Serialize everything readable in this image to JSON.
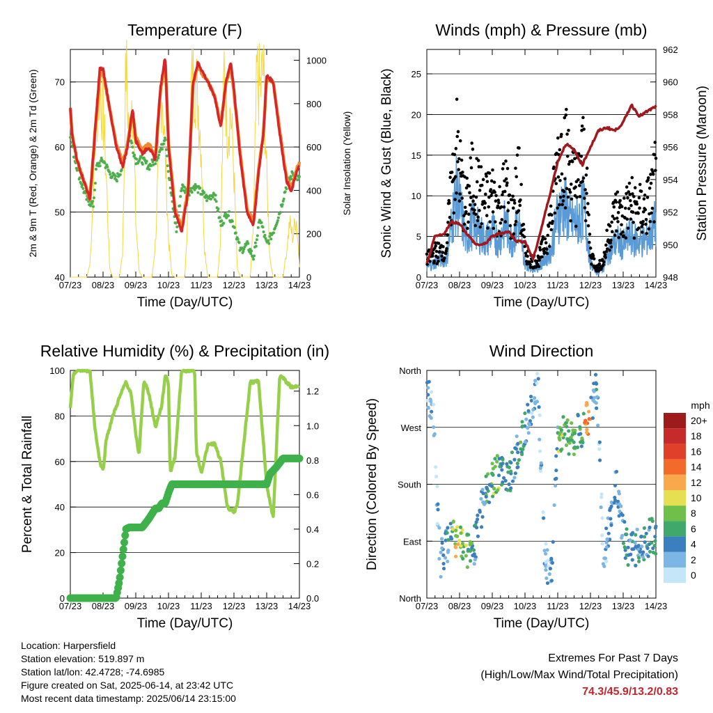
{
  "colors": {
    "t2m": "#d62728",
    "t9m": "#f08a2c",
    "td": "#4daf4a",
    "solar": "#f5d63d",
    "wind": "#5b9bd5",
    "gust": "#000000",
    "pressure": "#a0191f",
    "rh": "#96cf4a",
    "precip": "#3fb14a",
    "extremes": "#c1272d"
  },
  "chart_data": [
    {
      "type": "line",
      "title": "Temperature (F)",
      "xlabel": "Time (Day/UTC)",
      "ylabel": "2m & 9m T (Red, Orange) & 2m Td (Green)",
      "y2label": "Solar Insolation (Yellow)",
      "xticks": [
        "07/23",
        "08/23",
        "09/23",
        "10/23",
        "11/23",
        "12/23",
        "13/23",
        "14/23"
      ],
      "ylim": [
        40,
        75
      ],
      "yticks": [
        40,
        50,
        60,
        70
      ],
      "y2lim": [
        0,
        1050
      ],
      "y2ticks": [
        0,
        200,
        400,
        600,
        800,
        1000
      ],
      "grid": true,
      "series": [
        {
          "role": "t2m",
          "x": [
            0,
            0.05,
            0.2,
            0.4,
            0.6,
            0.75,
            0.9,
            1.0,
            1.2,
            1.4,
            1.6,
            1.75,
            1.9,
            2.0,
            2.2,
            2.4,
            2.6,
            2.75,
            2.9,
            3.0,
            3.2,
            3.4,
            3.6,
            3.75,
            3.9,
            4.0,
            4.2,
            4.4,
            4.6,
            4.75,
            4.9,
            5.0,
            5.2,
            5.4,
            5.6,
            5.75,
            5.9,
            6.0,
            6.2,
            6.4,
            6.6,
            6.75,
            6.9,
            7.0
          ],
          "y": [
            66,
            62,
            58,
            55,
            52,
            62,
            72,
            72,
            66,
            60,
            57,
            60,
            66,
            61,
            59,
            60,
            58,
            69,
            74,
            60,
            50,
            47,
            53,
            70,
            73,
            72,
            70,
            68,
            63,
            70,
            73,
            69,
            58,
            50,
            48,
            56,
            62,
            71,
            70,
            62,
            55,
            53,
            56,
            57
          ]
        },
        {
          "role": "t9m",
          "x": [
            0,
            0.05,
            0.2,
            0.4,
            0.6,
            0.75,
            0.9,
            1.0,
            1.2,
            1.4,
            1.6,
            1.75,
            1.9,
            2.0,
            2.2,
            2.4,
            2.6,
            2.75,
            2.9,
            3.0,
            3.2,
            3.4,
            3.6,
            3.75,
            3.9,
            4.0,
            4.2,
            4.4,
            4.6,
            4.75,
            4.9,
            5.0,
            5.2,
            5.4,
            5.6,
            5.75,
            5.9,
            6.0,
            6.2,
            6.4,
            6.6,
            6.75,
            6.9,
            7.0
          ],
          "y": [
            66,
            62,
            58,
            55,
            52,
            62,
            71,
            71.5,
            66,
            60.5,
            57.5,
            60.5,
            65.5,
            61.5,
            59.5,
            60.5,
            58.5,
            68.5,
            73.5,
            60.5,
            50.5,
            47.5,
            53.5,
            69.5,
            72.5,
            71.5,
            70,
            68,
            63.5,
            69.5,
            72.5,
            68.5,
            58.5,
            50.5,
            48.5,
            56.5,
            62,
            70.5,
            70,
            62.5,
            55.5,
            53.5,
            56.5,
            57.5
          ]
        },
        {
          "role": "td",
          "x": [
            0,
            0.1,
            0.3,
            0.5,
            0.7,
            0.8,
            1.0,
            1.2,
            1.4,
            1.6,
            1.8,
            2.0,
            2.2,
            2.4,
            2.6,
            2.8,
            2.9,
            3.0,
            3.1,
            3.25,
            3.4,
            3.6,
            3.8,
            4.0,
            4.2,
            4.4,
            4.6,
            4.8,
            5.0,
            5.2,
            5.4,
            5.6,
            5.8,
            6.0,
            6.2,
            6.4,
            6.6,
            6.8,
            7.0
          ],
          "y": [
            62,
            59,
            55,
            52,
            51,
            57,
            58,
            56,
            55,
            57,
            62,
            58,
            58,
            57,
            58,
            60,
            62,
            56,
            52,
            47,
            54,
            53,
            54,
            53,
            52,
            53,
            48,
            50,
            48,
            44,
            45,
            43,
            49,
            45,
            47,
            50,
            54,
            56,
            55
          ]
        },
        {
          "role": "solar",
          "axis": "y2",
          "x": [
            0,
            0.5,
            0.6,
            0.7,
            0.8,
            0.9,
            1.0,
            1.1,
            1.2,
            1.3,
            1.4,
            1.5,
            1.6,
            1.7,
            1.8,
            1.9,
            2.0,
            2.1,
            2.2,
            2.3,
            2.4,
            2.5,
            2.6,
            2.7,
            2.8,
            2.9,
            3.0,
            3.1,
            3.2,
            3.3,
            3.4,
            3.5,
            3.6,
            3.7,
            3.8,
            3.9,
            4.0,
            4.1,
            4.2,
            4.3,
            4.4,
            4.5,
            4.6,
            4.7,
            4.8,
            4.9,
            5.0,
            5.1,
            5.2,
            5.3,
            5.4,
            5.5,
            5.6,
            5.7,
            5.8,
            5.9,
            6.0,
            6.1,
            6.2,
            6.3,
            6.4,
            6.5,
            6.6,
            6.7,
            6.8,
            6.9,
            7.0
          ],
          "y": [
            0,
            0,
            60,
            380,
            760,
            880,
            780,
            460,
            40,
            0,
            0,
            0,
            120,
            990,
            620,
            900,
            260,
            30,
            0,
            0,
            0,
            0,
            160,
            540,
            910,
            560,
            180,
            10,
            0,
            0,
            0,
            0,
            320,
            880,
            930,
            820,
            610,
            140,
            0,
            0,
            0,
            0,
            210,
            980,
            690,
            760,
            480,
            40,
            0,
            0,
            0,
            0,
            260,
            930,
            850,
            960,
            470,
            90,
            0,
            0,
            0,
            0,
            110,
            250,
            180,
            290,
            60
          ]
        }
      ]
    },
    {
      "type": "scatter",
      "title": "Winds (mph) & Pressure (mb)",
      "xlabel": "Time (Day/UTC)",
      "ylabel": "Sonic Wind & Gust (Blue, Black)",
      "y2label": "Station Pressure (Maroon)",
      "xticks": [
        "07/23",
        "08/23",
        "09/23",
        "10/23",
        "11/23",
        "12/23",
        "13/23",
        "14/23"
      ],
      "ylim": [
        0,
        28
      ],
      "yticks": [
        0,
        5,
        10,
        15,
        20,
        25
      ],
      "y2lim": [
        948,
        962
      ],
      "y2ticks": [
        948,
        950,
        952,
        954,
        956,
        958,
        960,
        962
      ],
      "grid": true,
      "series": [
        {
          "role": "gust",
          "x": [
            0,
            0.2,
            0.4,
            0.6,
            0.8,
            0.9,
            1.0,
            1.1,
            1.2,
            1.4,
            1.6,
            1.8,
            2.0,
            2.2,
            2.4,
            2.6,
            2.8,
            3.0,
            3.2,
            3.4,
            3.6,
            3.8,
            4.0,
            4.2,
            4.4,
            4.6,
            4.8,
            5.0,
            5.2,
            5.4,
            5.6,
            5.8,
            6.0,
            6.2,
            6.4,
            6.6,
            6.8,
            7.0
          ],
          "y": [
            2,
            3,
            3,
            4,
            12,
            16,
            13,
            10,
            8,
            12,
            10,
            9,
            10,
            8,
            11,
            7,
            12,
            3,
            2,
            2,
            4,
            7,
            14,
            16,
            12,
            11,
            15,
            3,
            1,
            2,
            6,
            8,
            7,
            9,
            8,
            8,
            9,
            12
          ]
        },
        {
          "role": "wind",
          "x": [
            0,
            0.2,
            0.4,
            0.6,
            0.8,
            0.9,
            1.0,
            1.1,
            1.2,
            1.4,
            1.6,
            1.8,
            2.0,
            2.2,
            2.4,
            2.6,
            2.8,
            3.0,
            3.2,
            3.4,
            3.6,
            3.8,
            4.0,
            4.2,
            4.4,
            4.6,
            4.8,
            5.0,
            5.2,
            5.4,
            5.6,
            5.8,
            6.0,
            6.2,
            6.4,
            6.6,
            6.8,
            7.0
          ],
          "y": [
            1,
            1.5,
            2,
            2,
            7,
            9,
            8,
            6,
            4,
            6,
            5,
            4,
            5,
            4,
            6,
            4,
            6,
            1.5,
            1,
            1,
            2,
            3,
            7,
            8,
            6,
            6,
            8,
            1.5,
            0.5,
            1,
            3,
            4,
            3.5,
            4.5,
            4,
            4,
            4.5,
            6
          ]
        },
        {
          "role": "pressure",
          "axis": "y2",
          "x": [
            0,
            0.25,
            0.5,
            0.75,
            1.0,
            1.25,
            1.5,
            1.75,
            2.0,
            2.25,
            2.5,
            2.75,
            3.0,
            3.25,
            3.5,
            3.75,
            4.0,
            4.25,
            4.5,
            4.75,
            5.0,
            5.25,
            5.5,
            5.75,
            6.0,
            6.25,
            6.5,
            6.75,
            7.0
          ],
          "y": [
            948.8,
            950.5,
            950.6,
            951.4,
            951.3,
            950.6,
            950.0,
            950.0,
            950.5,
            950.7,
            950.8,
            950.2,
            950.2,
            949.1,
            951.0,
            953.0,
            955.1,
            956.2,
            955.8,
            954.9,
            956.0,
            957.0,
            957.2,
            957.0,
            957.5,
            958.6,
            957.9,
            958.2,
            958.5
          ]
        }
      ]
    },
    {
      "type": "line",
      "title": "Relative Humidity (%) & Precipitation (in)",
      "xlabel": "Time (Day/UTC)",
      "ylabel": "Percent & Total Rainfall",
      "xticks": [
        "07/23",
        "08/23",
        "09/23",
        "10/23",
        "11/23",
        "12/23",
        "13/23",
        "14/23"
      ],
      "ylim": [
        0,
        100
      ],
      "yticks": [
        0,
        20,
        40,
        60,
        80,
        100
      ],
      "y2lim": [
        0,
        1.32
      ],
      "y2ticks": [
        0.0,
        0.2,
        0.4,
        0.6,
        0.8,
        1.0,
        1.2
      ],
      "grid": true,
      "series": [
        {
          "role": "rh",
          "x": [
            0,
            0.1,
            0.3,
            0.6,
            0.75,
            0.9,
            1.0,
            1.1,
            1.3,
            1.5,
            1.7,
            1.85,
            2.0,
            2.1,
            2.25,
            2.4,
            2.6,
            2.8,
            2.9,
            3.0,
            3.05,
            3.2,
            3.4,
            3.6,
            3.8,
            3.85,
            4.0,
            4.2,
            4.4,
            4.6,
            4.8,
            5.0,
            5.1,
            5.3,
            5.5,
            5.75,
            6.0,
            6.2,
            6.4,
            6.6,
            6.8,
            7.0
          ],
          "y": [
            83,
            99,
            100,
            100,
            75,
            60,
            56,
            70,
            80,
            88,
            95,
            90,
            72,
            63,
            96,
            90,
            75,
            85,
            98,
            95,
            55,
            62,
            100,
            100,
            100,
            65,
            55,
            67,
            68,
            60,
            40,
            38,
            40,
            68,
            95,
            95,
            50,
            35,
            98,
            95,
            92,
            94
          ]
        },
        {
          "role": "precip",
          "axis": "y2",
          "x": [
            0,
            0.5,
            1.4,
            1.5,
            1.6,
            1.7,
            1.8,
            2.0,
            2.2,
            2.4,
            2.6,
            2.7,
            2.8,
            2.9,
            3.0,
            3.1,
            3.5,
            4.0,
            4.5,
            5.0,
            5.5,
            5.8,
            6.0,
            6.1,
            6.3,
            6.5,
            7.0
          ],
          "y": [
            0,
            0,
            0,
            0.1,
            0.25,
            0.4,
            0.41,
            0.41,
            0.41,
            0.46,
            0.52,
            0.52,
            0.55,
            0.55,
            0.61,
            0.66,
            0.66,
            0.66,
            0.66,
            0.66,
            0.66,
            0.66,
            0.66,
            0.72,
            0.76,
            0.81,
            0.81
          ]
        }
      ]
    },
    {
      "type": "scatter",
      "title": "Wind Direction",
      "xlabel": "Time (Day/UTC)",
      "ylabel": "Direction (Colored By Speed)",
      "xticks": [
        "07/23",
        "08/23",
        "09/23",
        "10/23",
        "11/23",
        "12/23",
        "13/23",
        "14/23"
      ],
      "yticks": [
        "North",
        "East",
        "South",
        "West",
        "North"
      ],
      "ylim": [
        0,
        360
      ],
      "grid": true,
      "legend": {
        "title": "mph",
        "labels": [
          "20+",
          "18",
          "16",
          "14",
          "12",
          "10",
          "8",
          "6",
          "4",
          "2",
          "0"
        ],
        "colors": [
          "#9e1b1b",
          "#c62b2b",
          "#e0402a",
          "#f36a2b",
          "#f9a84b",
          "#e6df52",
          "#6fbf4a",
          "#3fa86a",
          "#3b7fbf",
          "#7cb6e4",
          "#c4e6f8"
        ],
        "placement": "right"
      },
      "series": [
        {
          "role": "direction",
          "x": [
            0,
            0.2,
            0.4,
            0.6,
            0.8,
            1.0,
            1.2,
            1.4,
            1.6,
            1.8,
            2.0,
            2.2,
            2.4,
            2.6,
            2.8,
            3.0,
            3.2,
            3.4,
            3.6,
            3.8,
            4.0,
            4.2,
            4.4,
            4.6,
            4.8,
            5.0,
            5.2,
            5.4,
            5.6,
            5.8,
            6.0,
            6.2,
            6.4,
            6.6,
            6.8,
            7.0
          ],
          "y": [
            330,
            290,
            60,
            80,
            95,
            85,
            80,
            70,
            120,
            170,
            190,
            200,
            190,
            200,
            240,
            270,
            300,
            330,
            60,
            40,
            250,
            260,
            250,
            260,
            270,
            300,
            330,
            60,
            120,
            180,
            100,
            70,
            80,
            90,
            95,
            100
          ],
          "speed": [
            2,
            2,
            3,
            4,
            10,
            8,
            6,
            4,
            3,
            6,
            8,
            5,
            5,
            4,
            6,
            3,
            2,
            2,
            2,
            3,
            8,
            7,
            7,
            6,
            12,
            4,
            2,
            2,
            3,
            3,
            5,
            4,
            4,
            4,
            5,
            6
          ]
        }
      ]
    }
  ],
  "info": {
    "location": "Location: Harpersfield",
    "elevation": "Station elevation: 519.897 m",
    "latlon": "Station lat/lon: 42.4728; -74.6985",
    "created": "Figure created on Sat, 2025-06-14, at 23:42 UTC",
    "recent": "Most recent data timestamp: 2025/06/14 23:15:00"
  },
  "extremes": {
    "title": "Extremes For Past 7 Days",
    "subtitle": "(High/Low/Max Wind/Total Precipitation)",
    "values": "74.3/45.9/13.2/0.83"
  }
}
